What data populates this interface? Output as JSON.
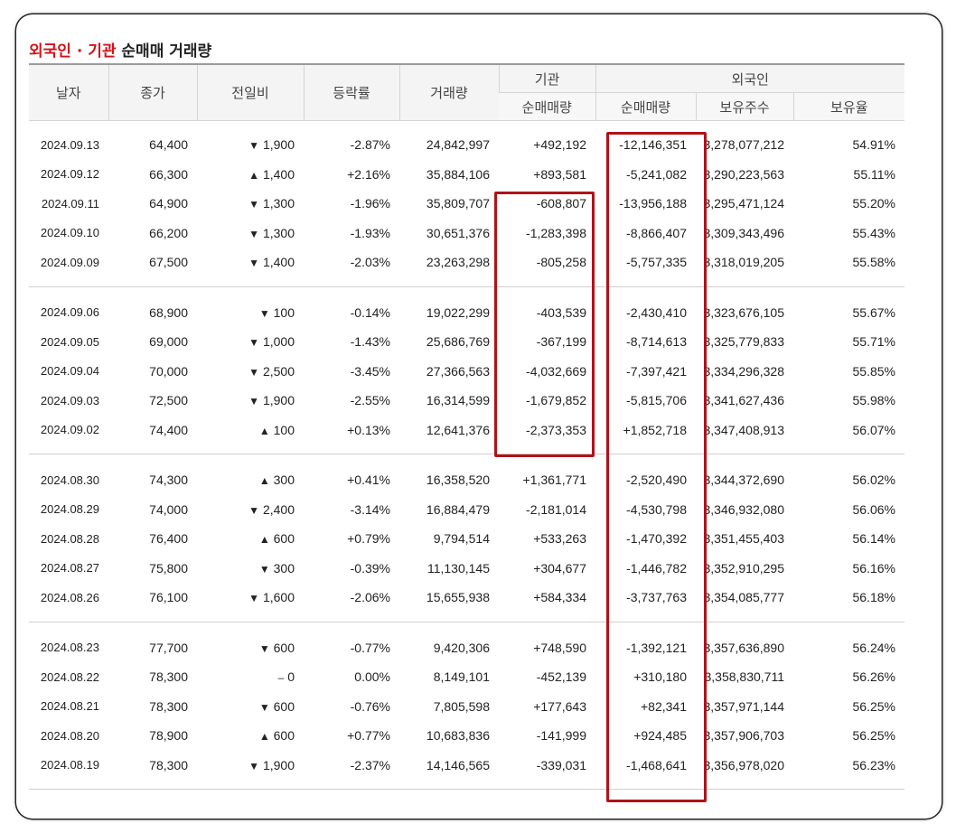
{
  "title": {
    "part_red": "외국인 · 기관",
    "part_black": " 순매매 거래량"
  },
  "headers": {
    "date": "날자",
    "close": "종가",
    "change": "전일비",
    "rate": "등락률",
    "volume": "거래량",
    "institution": "기관",
    "institution_net": "순매매량",
    "foreign": "외국인",
    "foreign_net": "순매매량",
    "foreign_shares": "보유주수",
    "foreign_ratio": "보유율"
  },
  "groups": [
    [
      {
        "date": "2024.09.13",
        "close": "64,400",
        "dir": "down",
        "arrow": "▼",
        "chg": "1,900",
        "rate": "-2.87%",
        "vol": "24,842,997",
        "inst": "+492,192",
        "forn": "-12,146,351",
        "shares": "3,278,077,212",
        "ratio": "54.91%"
      },
      {
        "date": "2024.09.12",
        "close": "66,300",
        "dir": "up",
        "arrow": "▲",
        "chg": "1,400",
        "rate": "+2.16%",
        "vol": "35,884,106",
        "inst": "+893,581",
        "forn": "-5,241,082",
        "shares": "3,290,223,563",
        "ratio": "55.11%"
      },
      {
        "date": "2024.09.11",
        "close": "64,900",
        "dir": "down",
        "arrow": "▼",
        "chg": "1,300",
        "rate": "-1.96%",
        "vol": "35,809,707",
        "inst": "-608,807",
        "forn": "-13,956,188",
        "shares": "3,295,471,124",
        "ratio": "55.20%"
      },
      {
        "date": "2024.09.10",
        "close": "66,200",
        "dir": "down",
        "arrow": "▼",
        "chg": "1,300",
        "rate": "-1.93%",
        "vol": "30,651,376",
        "inst": "-1,283,398",
        "forn": "-8,866,407",
        "shares": "3,309,343,496",
        "ratio": "55.43%"
      },
      {
        "date": "2024.09.09",
        "close": "67,500",
        "dir": "down",
        "arrow": "▼",
        "chg": "1,400",
        "rate": "-2.03%",
        "vol": "23,263,298",
        "inst": "-805,258",
        "forn": "-5,757,335",
        "shares": "3,318,019,205",
        "ratio": "55.58%"
      }
    ],
    [
      {
        "date": "2024.09.06",
        "close": "68,900",
        "dir": "down",
        "arrow": "▼",
        "chg": "100",
        "rate": "-0.14%",
        "vol": "19,022,299",
        "inst": "-403,539",
        "forn": "-2,430,410",
        "shares": "3,323,676,105",
        "ratio": "55.67%"
      },
      {
        "date": "2024.09.05",
        "close": "69,000",
        "dir": "down",
        "arrow": "▼",
        "chg": "1,000",
        "rate": "-1.43%",
        "vol": "25,686,769",
        "inst": "-367,199",
        "forn": "-8,714,613",
        "shares": "3,325,779,833",
        "ratio": "55.71%"
      },
      {
        "date": "2024.09.04",
        "close": "70,000",
        "dir": "down",
        "arrow": "▼",
        "chg": "2,500",
        "rate": "-3.45%",
        "vol": "27,366,563",
        "inst": "-4,032,669",
        "forn": "-7,397,421",
        "shares": "3,334,296,328",
        "ratio": "55.85%"
      },
      {
        "date": "2024.09.03",
        "close": "72,500",
        "dir": "down",
        "arrow": "▼",
        "chg": "1,900",
        "rate": "-2.55%",
        "vol": "16,314,599",
        "inst": "-1,679,852",
        "forn": "-5,815,706",
        "shares": "3,341,627,436",
        "ratio": "55.98%"
      },
      {
        "date": "2024.09.02",
        "close": "74,400",
        "dir": "up",
        "arrow": "▲",
        "chg": "100",
        "rate": "+0.13%",
        "vol": "12,641,376",
        "inst": "-2,373,353",
        "forn": "+1,852,718",
        "shares": "3,347,408,913",
        "ratio": "56.07%"
      }
    ],
    [
      {
        "date": "2024.08.30",
        "close": "74,300",
        "dir": "up",
        "arrow": "▲",
        "chg": "300",
        "rate": "+0.41%",
        "vol": "16,358,520",
        "inst": "+1,361,771",
        "forn": "-2,520,490",
        "shares": "3,344,372,690",
        "ratio": "56.02%"
      },
      {
        "date": "2024.08.29",
        "close": "74,000",
        "dir": "down",
        "arrow": "▼",
        "chg": "2,400",
        "rate": "-3.14%",
        "vol": "16,884,479",
        "inst": "-2,181,014",
        "forn": "-4,530,798",
        "shares": "3,346,932,080",
        "ratio": "56.06%"
      },
      {
        "date": "2024.08.28",
        "close": "76,400",
        "dir": "up",
        "arrow": "▲",
        "chg": "600",
        "rate": "+0.79%",
        "vol": "9,794,514",
        "inst": "+533,263",
        "forn": "-1,470,392",
        "shares": "3,351,455,403",
        "ratio": "56.14%"
      },
      {
        "date": "2024.08.27",
        "close": "75,800",
        "dir": "down",
        "arrow": "▼",
        "chg": "300",
        "rate": "-0.39%",
        "vol": "11,130,145",
        "inst": "+304,677",
        "forn": "-1,446,782",
        "shares": "3,352,910,295",
        "ratio": "56.16%"
      },
      {
        "date": "2024.08.26",
        "close": "76,100",
        "dir": "down",
        "arrow": "▼",
        "chg": "1,600",
        "rate": "-2.06%",
        "vol": "15,655,938",
        "inst": "+584,334",
        "forn": "-3,737,763",
        "shares": "3,354,085,777",
        "ratio": "56.18%"
      }
    ],
    [
      {
        "date": "2024.08.23",
        "close": "77,700",
        "dir": "down",
        "arrow": "▼",
        "chg": "600",
        "rate": "-0.77%",
        "vol": "9,420,306",
        "inst": "+748,590",
        "forn": "-1,392,121",
        "shares": "3,357,636,890",
        "ratio": "56.24%"
      },
      {
        "date": "2024.08.22",
        "close": "78,300",
        "dir": "flat",
        "arrow": "–",
        "chg": "0",
        "rate": "0.00%",
        "vol": "8,149,101",
        "inst": "-452,139",
        "forn": "+310,180",
        "shares": "3,358,830,711",
        "ratio": "56.26%"
      },
      {
        "date": "2024.08.21",
        "close": "78,300",
        "dir": "down",
        "arrow": "▼",
        "chg": "600",
        "rate": "-0.76%",
        "vol": "7,805,598",
        "inst": "+177,643",
        "forn": "+82,341",
        "shares": "3,357,971,144",
        "ratio": "56.25%"
      },
      {
        "date": "2024.08.20",
        "close": "78,900",
        "dir": "up",
        "arrow": "▲",
        "chg": "600",
        "rate": "+0.77%",
        "vol": "10,683,836",
        "inst": "-141,999",
        "forn": "+924,485",
        "shares": "3,357,906,703",
        "ratio": "56.25%"
      },
      {
        "date": "2024.08.19",
        "close": "78,300",
        "dir": "down",
        "arrow": "▼",
        "chg": "1,900",
        "rate": "-2.37%",
        "vol": "14,146,565",
        "inst": "-339,031",
        "forn": "-1,468,641",
        "shares": "3,356,978,020",
        "ratio": "56.23%"
      }
    ]
  ],
  "colors": {
    "up": "#d2121a",
    "down": "#1a3aa8",
    "highlight_box": "#b01219"
  }
}
